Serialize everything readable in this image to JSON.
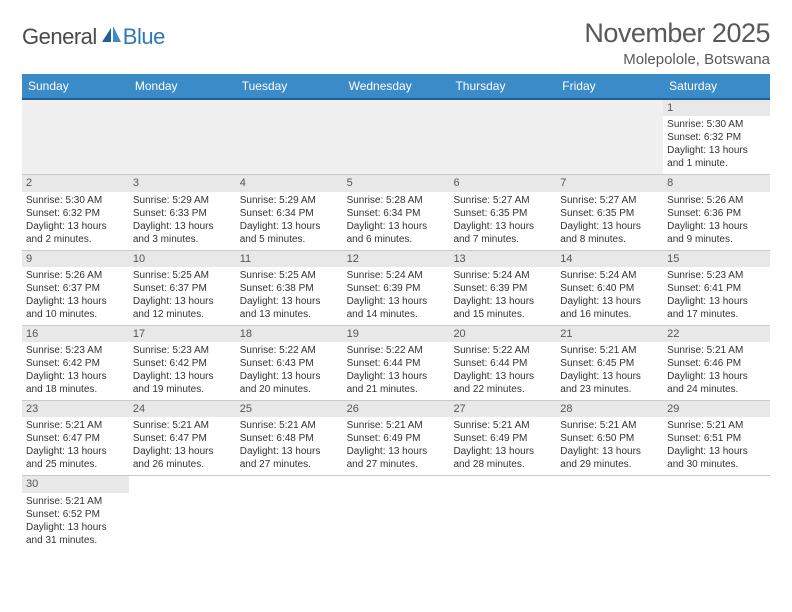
{
  "logo": {
    "general": "General",
    "blue": "Blue"
  },
  "title": "November 2025",
  "location": "Molepolole, Botswana",
  "colors": {
    "header_bg": "#3b8bc9",
    "header_text": "#ffffff",
    "accent_line": "#1f5f9e",
    "day_num_bg": "#e8e8e8",
    "border": "#c9c9c9",
    "text": "#333333",
    "title_text": "#595959"
  },
  "weekdays": [
    "Sunday",
    "Monday",
    "Tuesday",
    "Wednesday",
    "Thursday",
    "Friday",
    "Saturday"
  ],
  "weeks": [
    [
      null,
      null,
      null,
      null,
      null,
      null,
      {
        "n": "1",
        "sr": "Sunrise: 5:30 AM",
        "ss": "Sunset: 6:32 PM",
        "d1": "Daylight: 13 hours",
        "d2": "and 1 minute."
      }
    ],
    [
      {
        "n": "2",
        "sr": "Sunrise: 5:30 AM",
        "ss": "Sunset: 6:32 PM",
        "d1": "Daylight: 13 hours",
        "d2": "and 2 minutes."
      },
      {
        "n": "3",
        "sr": "Sunrise: 5:29 AM",
        "ss": "Sunset: 6:33 PM",
        "d1": "Daylight: 13 hours",
        "d2": "and 3 minutes."
      },
      {
        "n": "4",
        "sr": "Sunrise: 5:29 AM",
        "ss": "Sunset: 6:34 PM",
        "d1": "Daylight: 13 hours",
        "d2": "and 5 minutes."
      },
      {
        "n": "5",
        "sr": "Sunrise: 5:28 AM",
        "ss": "Sunset: 6:34 PM",
        "d1": "Daylight: 13 hours",
        "d2": "and 6 minutes."
      },
      {
        "n": "6",
        "sr": "Sunrise: 5:27 AM",
        "ss": "Sunset: 6:35 PM",
        "d1": "Daylight: 13 hours",
        "d2": "and 7 minutes."
      },
      {
        "n": "7",
        "sr": "Sunrise: 5:27 AM",
        "ss": "Sunset: 6:35 PM",
        "d1": "Daylight: 13 hours",
        "d2": "and 8 minutes."
      },
      {
        "n": "8",
        "sr": "Sunrise: 5:26 AM",
        "ss": "Sunset: 6:36 PM",
        "d1": "Daylight: 13 hours",
        "d2": "and 9 minutes."
      }
    ],
    [
      {
        "n": "9",
        "sr": "Sunrise: 5:26 AM",
        "ss": "Sunset: 6:37 PM",
        "d1": "Daylight: 13 hours",
        "d2": "and 10 minutes."
      },
      {
        "n": "10",
        "sr": "Sunrise: 5:25 AM",
        "ss": "Sunset: 6:37 PM",
        "d1": "Daylight: 13 hours",
        "d2": "and 12 minutes."
      },
      {
        "n": "11",
        "sr": "Sunrise: 5:25 AM",
        "ss": "Sunset: 6:38 PM",
        "d1": "Daylight: 13 hours",
        "d2": "and 13 minutes."
      },
      {
        "n": "12",
        "sr": "Sunrise: 5:24 AM",
        "ss": "Sunset: 6:39 PM",
        "d1": "Daylight: 13 hours",
        "d2": "and 14 minutes."
      },
      {
        "n": "13",
        "sr": "Sunrise: 5:24 AM",
        "ss": "Sunset: 6:39 PM",
        "d1": "Daylight: 13 hours",
        "d2": "and 15 minutes."
      },
      {
        "n": "14",
        "sr": "Sunrise: 5:24 AM",
        "ss": "Sunset: 6:40 PM",
        "d1": "Daylight: 13 hours",
        "d2": "and 16 minutes."
      },
      {
        "n": "15",
        "sr": "Sunrise: 5:23 AM",
        "ss": "Sunset: 6:41 PM",
        "d1": "Daylight: 13 hours",
        "d2": "and 17 minutes."
      }
    ],
    [
      {
        "n": "16",
        "sr": "Sunrise: 5:23 AM",
        "ss": "Sunset: 6:42 PM",
        "d1": "Daylight: 13 hours",
        "d2": "and 18 minutes."
      },
      {
        "n": "17",
        "sr": "Sunrise: 5:23 AM",
        "ss": "Sunset: 6:42 PM",
        "d1": "Daylight: 13 hours",
        "d2": "and 19 minutes."
      },
      {
        "n": "18",
        "sr": "Sunrise: 5:22 AM",
        "ss": "Sunset: 6:43 PM",
        "d1": "Daylight: 13 hours",
        "d2": "and 20 minutes."
      },
      {
        "n": "19",
        "sr": "Sunrise: 5:22 AM",
        "ss": "Sunset: 6:44 PM",
        "d1": "Daylight: 13 hours",
        "d2": "and 21 minutes."
      },
      {
        "n": "20",
        "sr": "Sunrise: 5:22 AM",
        "ss": "Sunset: 6:44 PM",
        "d1": "Daylight: 13 hours",
        "d2": "and 22 minutes."
      },
      {
        "n": "21",
        "sr": "Sunrise: 5:21 AM",
        "ss": "Sunset: 6:45 PM",
        "d1": "Daylight: 13 hours",
        "d2": "and 23 minutes."
      },
      {
        "n": "22",
        "sr": "Sunrise: 5:21 AM",
        "ss": "Sunset: 6:46 PM",
        "d1": "Daylight: 13 hours",
        "d2": "and 24 minutes."
      }
    ],
    [
      {
        "n": "23",
        "sr": "Sunrise: 5:21 AM",
        "ss": "Sunset: 6:47 PM",
        "d1": "Daylight: 13 hours",
        "d2": "and 25 minutes."
      },
      {
        "n": "24",
        "sr": "Sunrise: 5:21 AM",
        "ss": "Sunset: 6:47 PM",
        "d1": "Daylight: 13 hours",
        "d2": "and 26 minutes."
      },
      {
        "n": "25",
        "sr": "Sunrise: 5:21 AM",
        "ss": "Sunset: 6:48 PM",
        "d1": "Daylight: 13 hours",
        "d2": "and 27 minutes."
      },
      {
        "n": "26",
        "sr": "Sunrise: 5:21 AM",
        "ss": "Sunset: 6:49 PM",
        "d1": "Daylight: 13 hours",
        "d2": "and 27 minutes."
      },
      {
        "n": "27",
        "sr": "Sunrise: 5:21 AM",
        "ss": "Sunset: 6:49 PM",
        "d1": "Daylight: 13 hours",
        "d2": "and 28 minutes."
      },
      {
        "n": "28",
        "sr": "Sunrise: 5:21 AM",
        "ss": "Sunset: 6:50 PM",
        "d1": "Daylight: 13 hours",
        "d2": "and 29 minutes."
      },
      {
        "n": "29",
        "sr": "Sunrise: 5:21 AM",
        "ss": "Sunset: 6:51 PM",
        "d1": "Daylight: 13 hours",
        "d2": "and 30 minutes."
      }
    ],
    [
      {
        "n": "30",
        "sr": "Sunrise: 5:21 AM",
        "ss": "Sunset: 6:52 PM",
        "d1": "Daylight: 13 hours",
        "d2": "and 31 minutes."
      },
      null,
      null,
      null,
      null,
      null,
      null
    ]
  ]
}
